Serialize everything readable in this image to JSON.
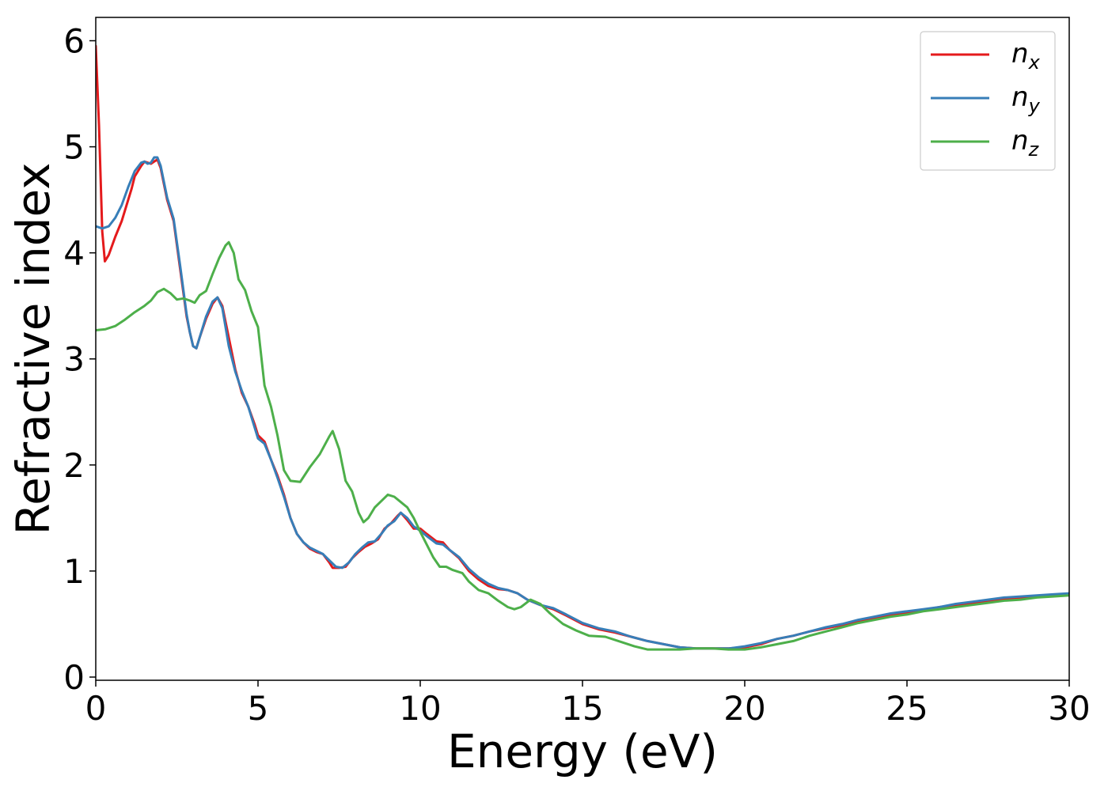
{
  "chart_data": {
    "type": "line",
    "title": "",
    "xlabel": "Energy (eV)",
    "ylabel": "Refractive index",
    "xlim": [
      0,
      30
    ],
    "ylim": [
      -0.03,
      6.22
    ],
    "xticks": [
      0,
      5,
      10,
      15,
      20,
      25,
      30
    ],
    "yticks": [
      0,
      1,
      2,
      3,
      4,
      5,
      6
    ],
    "grid": false,
    "legend_position": "top-right",
    "series": [
      {
        "name": "n_x",
        "label_main": "n",
        "label_sub": "x",
        "color": "#e41a1c",
        "points": [
          [
            0,
            5.95
          ],
          [
            0.1,
            5.2
          ],
          [
            0.2,
            4.2
          ],
          [
            0.28,
            3.92
          ],
          [
            0.4,
            3.98
          ],
          [
            0.6,
            4.15
          ],
          [
            0.8,
            4.3
          ],
          [
            1.0,
            4.5
          ],
          [
            1.1,
            4.6
          ],
          [
            1.2,
            4.72
          ],
          [
            1.4,
            4.82
          ],
          [
            1.5,
            4.86
          ],
          [
            1.6,
            4.85
          ],
          [
            1.7,
            4.84
          ],
          [
            1.8,
            4.86
          ],
          [
            1.9,
            4.88
          ],
          [
            2.0,
            4.8
          ],
          [
            2.2,
            4.5
          ],
          [
            2.4,
            4.3
          ],
          [
            2.6,
            3.85
          ],
          [
            2.8,
            3.4
          ],
          [
            2.9,
            3.25
          ],
          [
            3.0,
            3.12
          ],
          [
            3.1,
            3.1
          ],
          [
            3.2,
            3.2
          ],
          [
            3.4,
            3.38
          ],
          [
            3.6,
            3.52
          ],
          [
            3.75,
            3.58
          ],
          [
            3.9,
            3.5
          ],
          [
            4.1,
            3.2
          ],
          [
            4.3,
            2.9
          ],
          [
            4.5,
            2.68
          ],
          [
            4.7,
            2.55
          ],
          [
            4.9,
            2.38
          ],
          [
            5.0,
            2.28
          ],
          [
            5.2,
            2.22
          ],
          [
            5.4,
            2.05
          ],
          [
            5.6,
            1.9
          ],
          [
            5.8,
            1.72
          ],
          [
            6.0,
            1.5
          ],
          [
            6.2,
            1.35
          ],
          [
            6.4,
            1.27
          ],
          [
            6.6,
            1.21
          ],
          [
            6.8,
            1.18
          ],
          [
            7.0,
            1.16
          ],
          [
            7.2,
            1.08
          ],
          [
            7.3,
            1.03
          ],
          [
            7.5,
            1.03
          ],
          [
            7.7,
            1.04
          ],
          [
            7.9,
            1.12
          ],
          [
            8.1,
            1.18
          ],
          [
            8.3,
            1.23
          ],
          [
            8.5,
            1.26
          ],
          [
            8.7,
            1.3
          ],
          [
            8.9,
            1.4
          ],
          [
            9.1,
            1.45
          ],
          [
            9.3,
            1.52
          ],
          [
            9.4,
            1.55
          ],
          [
            9.6,
            1.48
          ],
          [
            9.8,
            1.4
          ],
          [
            10.0,
            1.4
          ],
          [
            10.2,
            1.35
          ],
          [
            10.5,
            1.28
          ],
          [
            10.7,
            1.27
          ],
          [
            10.9,
            1.2
          ],
          [
            11.2,
            1.12
          ],
          [
            11.5,
            1.0
          ],
          [
            11.8,
            0.92
          ],
          [
            12.1,
            0.86
          ],
          [
            12.4,
            0.83
          ],
          [
            12.7,
            0.82
          ],
          [
            13.0,
            0.79
          ],
          [
            13.3,
            0.73
          ],
          [
            13.7,
            0.68
          ],
          [
            14.1,
            0.64
          ],
          [
            14.5,
            0.58
          ],
          [
            15.0,
            0.5
          ],
          [
            15.5,
            0.45
          ],
          [
            16.0,
            0.42
          ],
          [
            16.5,
            0.38
          ],
          [
            17.0,
            0.34
          ],
          [
            17.5,
            0.31
          ],
          [
            18.0,
            0.28
          ],
          [
            18.5,
            0.27
          ],
          [
            19.0,
            0.27
          ],
          [
            19.5,
            0.27
          ],
          [
            20.0,
            0.28
          ],
          [
            20.5,
            0.31
          ],
          [
            21.0,
            0.36
          ],
          [
            21.5,
            0.39
          ],
          [
            22.0,
            0.43
          ],
          [
            22.5,
            0.46
          ],
          [
            23.0,
            0.49
          ],
          [
            23.5,
            0.53
          ],
          [
            24.0,
            0.56
          ],
          [
            24.5,
            0.59
          ],
          [
            25.0,
            0.61
          ],
          [
            25.5,
            0.63
          ],
          [
            26.0,
            0.66
          ],
          [
            26.5,
            0.68
          ],
          [
            27.0,
            0.7
          ],
          [
            27.5,
            0.72
          ],
          [
            28.0,
            0.74
          ],
          [
            28.5,
            0.75
          ],
          [
            29.0,
            0.76
          ],
          [
            29.5,
            0.77
          ],
          [
            30.0,
            0.78
          ]
        ]
      },
      {
        "name": "n_y",
        "label_main": "n",
        "label_sub": "y",
        "color": "#377eb8",
        "points": [
          [
            0,
            4.25
          ],
          [
            0.2,
            4.23
          ],
          [
            0.4,
            4.25
          ],
          [
            0.6,
            4.33
          ],
          [
            0.8,
            4.45
          ],
          [
            1.0,
            4.62
          ],
          [
            1.2,
            4.77
          ],
          [
            1.4,
            4.85
          ],
          [
            1.5,
            4.86
          ],
          [
            1.6,
            4.84
          ],
          [
            1.7,
            4.85
          ],
          [
            1.8,
            4.9
          ],
          [
            1.9,
            4.9
          ],
          [
            2.0,
            4.82
          ],
          [
            2.2,
            4.52
          ],
          [
            2.4,
            4.32
          ],
          [
            2.6,
            3.88
          ],
          [
            2.8,
            3.42
          ],
          [
            2.9,
            3.25
          ],
          [
            3.0,
            3.12
          ],
          [
            3.1,
            3.1
          ],
          [
            3.2,
            3.2
          ],
          [
            3.4,
            3.4
          ],
          [
            3.6,
            3.54
          ],
          [
            3.75,
            3.58
          ],
          [
            3.9,
            3.48
          ],
          [
            4.1,
            3.12
          ],
          [
            4.3,
            2.88
          ],
          [
            4.5,
            2.7
          ],
          [
            4.7,
            2.55
          ],
          [
            4.9,
            2.35
          ],
          [
            5.0,
            2.25
          ],
          [
            5.2,
            2.2
          ],
          [
            5.4,
            2.05
          ],
          [
            5.6,
            1.88
          ],
          [
            5.8,
            1.7
          ],
          [
            6.0,
            1.5
          ],
          [
            6.2,
            1.35
          ],
          [
            6.4,
            1.27
          ],
          [
            6.6,
            1.22
          ],
          [
            6.8,
            1.19
          ],
          [
            7.0,
            1.16
          ],
          [
            7.2,
            1.1
          ],
          [
            7.4,
            1.04
          ],
          [
            7.6,
            1.03
          ],
          [
            7.8,
            1.08
          ],
          [
            8.0,
            1.16
          ],
          [
            8.2,
            1.22
          ],
          [
            8.4,
            1.27
          ],
          [
            8.6,
            1.28
          ],
          [
            8.8,
            1.35
          ],
          [
            9.0,
            1.43
          ],
          [
            9.2,
            1.47
          ],
          [
            9.4,
            1.55
          ],
          [
            9.6,
            1.5
          ],
          [
            9.8,
            1.42
          ],
          [
            10.0,
            1.38
          ],
          [
            10.2,
            1.33
          ],
          [
            10.5,
            1.26
          ],
          [
            10.7,
            1.25
          ],
          [
            10.9,
            1.2
          ],
          [
            11.2,
            1.13
          ],
          [
            11.5,
            1.02
          ],
          [
            11.8,
            0.94
          ],
          [
            12.1,
            0.88
          ],
          [
            12.4,
            0.84
          ],
          [
            12.7,
            0.82
          ],
          [
            13.0,
            0.79
          ],
          [
            13.3,
            0.73
          ],
          [
            13.7,
            0.68
          ],
          [
            14.1,
            0.65
          ],
          [
            14.5,
            0.59
          ],
          [
            15.0,
            0.51
          ],
          [
            15.5,
            0.46
          ],
          [
            16.0,
            0.43
          ],
          [
            16.5,
            0.38
          ],
          [
            17.0,
            0.34
          ],
          [
            17.5,
            0.31
          ],
          [
            18.0,
            0.28
          ],
          [
            18.5,
            0.27
          ],
          [
            19.0,
            0.27
          ],
          [
            19.5,
            0.27
          ],
          [
            20.0,
            0.29
          ],
          [
            20.5,
            0.32
          ],
          [
            21.0,
            0.36
          ],
          [
            21.5,
            0.39
          ],
          [
            22.0,
            0.43
          ],
          [
            22.5,
            0.47
          ],
          [
            23.0,
            0.5
          ],
          [
            23.5,
            0.54
          ],
          [
            24.0,
            0.57
          ],
          [
            24.5,
            0.6
          ],
          [
            25.0,
            0.62
          ],
          [
            25.5,
            0.64
          ],
          [
            26.0,
            0.66
          ],
          [
            26.5,
            0.69
          ],
          [
            27.0,
            0.71
          ],
          [
            27.5,
            0.73
          ],
          [
            28.0,
            0.75
          ],
          [
            28.5,
            0.76
          ],
          [
            29.0,
            0.77
          ],
          [
            29.5,
            0.78
          ],
          [
            30.0,
            0.79
          ]
        ]
      },
      {
        "name": "n_z",
        "label_main": "n",
        "label_sub": "z",
        "color": "#4daf4a",
        "points": [
          [
            0,
            3.27
          ],
          [
            0.3,
            3.28
          ],
          [
            0.6,
            3.31
          ],
          [
            0.9,
            3.37
          ],
          [
            1.2,
            3.44
          ],
          [
            1.5,
            3.5
          ],
          [
            1.7,
            3.55
          ],
          [
            1.9,
            3.63
          ],
          [
            2.1,
            3.66
          ],
          [
            2.3,
            3.62
          ],
          [
            2.5,
            3.56
          ],
          [
            2.7,
            3.57
          ],
          [
            2.9,
            3.55
          ],
          [
            3.05,
            3.53
          ],
          [
            3.2,
            3.6
          ],
          [
            3.4,
            3.64
          ],
          [
            3.6,
            3.8
          ],
          [
            3.8,
            3.95
          ],
          [
            4.0,
            4.07
          ],
          [
            4.1,
            4.1
          ],
          [
            4.25,
            4.0
          ],
          [
            4.4,
            3.75
          ],
          [
            4.6,
            3.65
          ],
          [
            4.8,
            3.45
          ],
          [
            5.0,
            3.3
          ],
          [
            5.2,
            2.75
          ],
          [
            5.4,
            2.55
          ],
          [
            5.6,
            2.28
          ],
          [
            5.8,
            1.95
          ],
          [
            6.0,
            1.85
          ],
          [
            6.3,
            1.84
          ],
          [
            6.6,
            1.98
          ],
          [
            6.9,
            2.1
          ],
          [
            7.2,
            2.27
          ],
          [
            7.3,
            2.32
          ],
          [
            7.5,
            2.15
          ],
          [
            7.7,
            1.85
          ],
          [
            7.9,
            1.75
          ],
          [
            8.1,
            1.55
          ],
          [
            8.25,
            1.46
          ],
          [
            8.4,
            1.5
          ],
          [
            8.6,
            1.6
          ],
          [
            8.8,
            1.66
          ],
          [
            9.0,
            1.72
          ],
          [
            9.2,
            1.7
          ],
          [
            9.4,
            1.65
          ],
          [
            9.6,
            1.6
          ],
          [
            9.8,
            1.5
          ],
          [
            10.0,
            1.37
          ],
          [
            10.2,
            1.25
          ],
          [
            10.4,
            1.13
          ],
          [
            10.6,
            1.04
          ],
          [
            10.8,
            1.04
          ],
          [
            11.0,
            1.01
          ],
          [
            11.3,
            0.98
          ],
          [
            11.5,
            0.9
          ],
          [
            11.8,
            0.82
          ],
          [
            12.1,
            0.79
          ],
          [
            12.4,
            0.72
          ],
          [
            12.7,
            0.66
          ],
          [
            12.9,
            0.64
          ],
          [
            13.1,
            0.66
          ],
          [
            13.4,
            0.73
          ],
          [
            13.7,
            0.69
          ],
          [
            14.0,
            0.6
          ],
          [
            14.4,
            0.5
          ],
          [
            14.8,
            0.44
          ],
          [
            15.2,
            0.39
          ],
          [
            15.7,
            0.38
          ],
          [
            16.2,
            0.33
          ],
          [
            16.6,
            0.29
          ],
          [
            17.0,
            0.26
          ],
          [
            17.5,
            0.26
          ],
          [
            18.0,
            0.26
          ],
          [
            18.5,
            0.27
          ],
          [
            19.0,
            0.27
          ],
          [
            19.5,
            0.26
          ],
          [
            20.0,
            0.26
          ],
          [
            20.5,
            0.28
          ],
          [
            21.0,
            0.31
          ],
          [
            21.5,
            0.34
          ],
          [
            22.0,
            0.39
          ],
          [
            22.5,
            0.43
          ],
          [
            23.0,
            0.47
          ],
          [
            23.5,
            0.51
          ],
          [
            24.0,
            0.54
          ],
          [
            24.5,
            0.57
          ],
          [
            25.0,
            0.59
          ],
          [
            25.5,
            0.62
          ],
          [
            26.0,
            0.64
          ],
          [
            26.5,
            0.66
          ],
          [
            27.0,
            0.68
          ],
          [
            27.5,
            0.7
          ],
          [
            28.0,
            0.72
          ],
          [
            28.5,
            0.73
          ],
          [
            29.0,
            0.75
          ],
          [
            29.5,
            0.76
          ],
          [
            30.0,
            0.77
          ]
        ]
      }
    ]
  }
}
